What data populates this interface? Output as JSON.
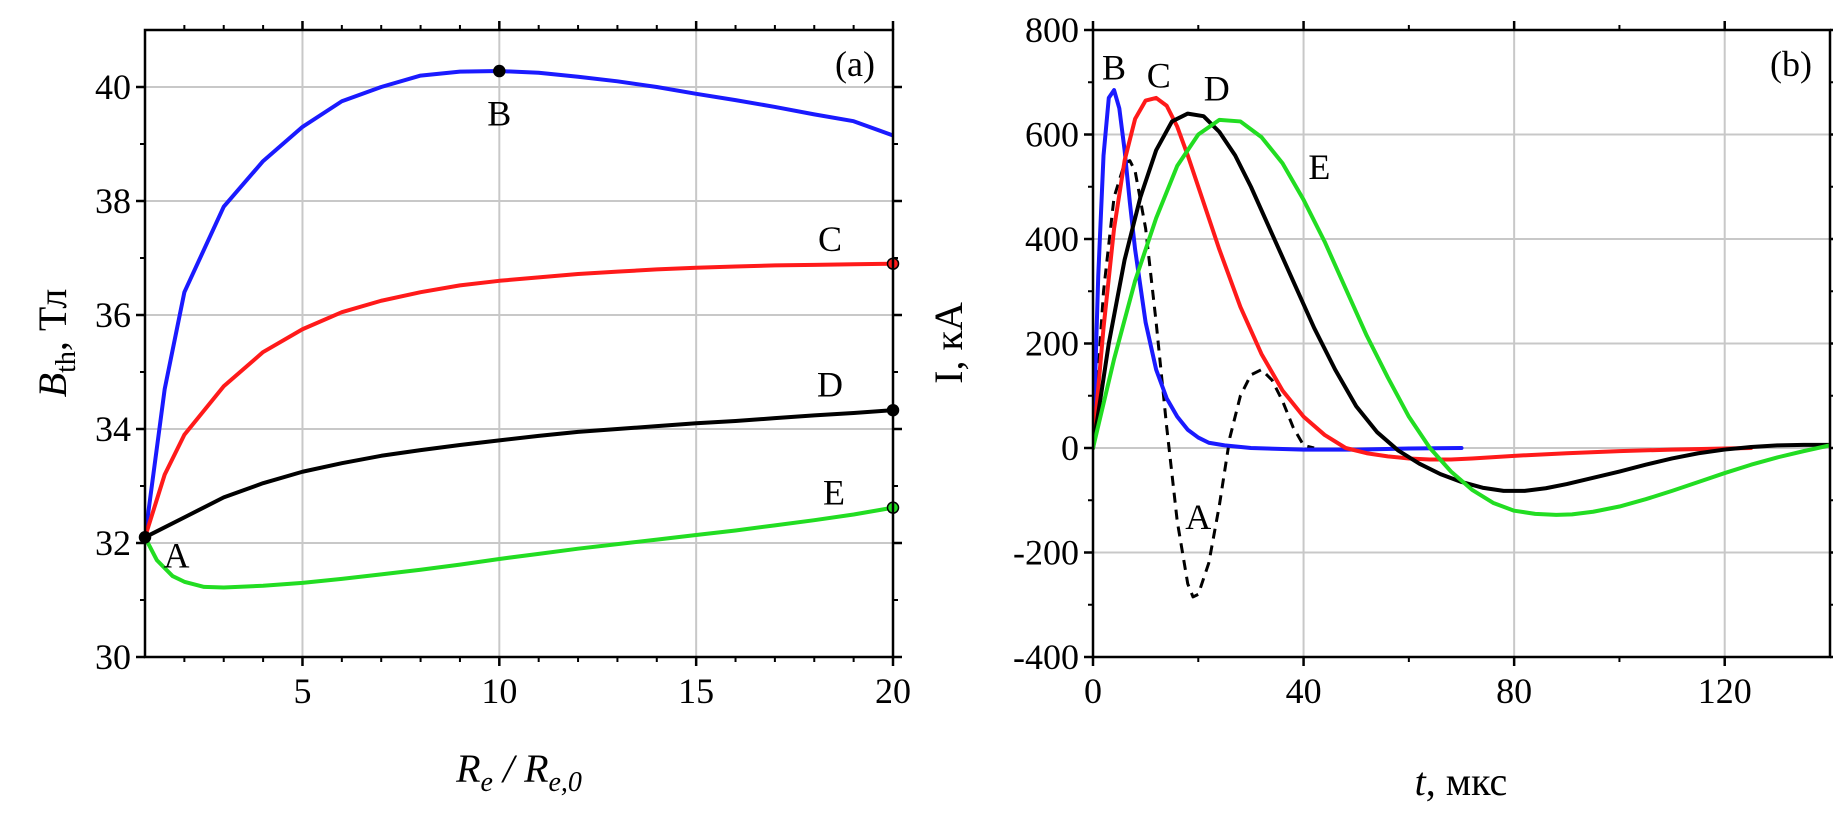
{
  "chart_data": [
    {
      "type": "line",
      "panel_label": "(a)",
      "ylabel": {
        "main": "B",
        "sub": "th",
        "rest": ", Тл"
      },
      "xlabel": {
        "part1": "R",
        "sub1": "e",
        "mid": " / ",
        "part2": "R",
        "sub2": "e,0"
      },
      "xlim": [
        1,
        20
      ],
      "ylim": [
        30,
        41
      ],
      "xticks": [
        5,
        10,
        15,
        20
      ],
      "xtick_labels": [
        "5",
        "10",
        "15",
        "20"
      ],
      "yticks": [
        30,
        32,
        34,
        36,
        38,
        40
      ],
      "ytick_labels": [
        "30",
        "32",
        "34",
        "36",
        "38",
        "40"
      ],
      "grid": true,
      "series": [
        {
          "name": "B",
          "color": "#1a1aff",
          "dash": false,
          "x": [
            1,
            1.5,
            2,
            3,
            4,
            5,
            6,
            7,
            8,
            9,
            10,
            11,
            12,
            13,
            14,
            15,
            16,
            17,
            18,
            19,
            20
          ],
          "y": [
            32.1,
            34.7,
            36.4,
            37.9,
            38.7,
            39.3,
            39.75,
            40.0,
            40.2,
            40.27,
            40.28,
            40.25,
            40.18,
            40.1,
            40.0,
            39.88,
            39.77,
            39.65,
            39.52,
            39.4,
            39.15
          ]
        },
        {
          "name": "C",
          "color": "#ff1a1a",
          "dash": false,
          "x": [
            1,
            1.5,
            2,
            3,
            4,
            5,
            6,
            7,
            8,
            9,
            10,
            11,
            12,
            13,
            14,
            15,
            16,
            17,
            18,
            19,
            20
          ],
          "y": [
            32.1,
            33.2,
            33.9,
            34.75,
            35.35,
            35.75,
            36.05,
            36.25,
            36.4,
            36.52,
            36.6,
            36.66,
            36.72,
            36.76,
            36.8,
            36.83,
            36.85,
            36.87,
            36.88,
            36.89,
            36.9
          ]
        },
        {
          "name": "D",
          "color": "#000000",
          "dash": false,
          "x": [
            1,
            2,
            3,
            4,
            5,
            6,
            7,
            8,
            9,
            10,
            11,
            12,
            13,
            14,
            15,
            16,
            17,
            18,
            19,
            20
          ],
          "y": [
            32.1,
            32.45,
            32.8,
            33.05,
            33.25,
            33.4,
            33.53,
            33.63,
            33.72,
            33.8,
            33.88,
            33.95,
            34.0,
            34.05,
            34.1,
            34.14,
            34.19,
            34.24,
            34.28,
            34.33
          ]
        },
        {
          "name": "E",
          "color": "#22dd22",
          "dash": false,
          "x": [
            1,
            1.3,
            1.7,
            2,
            2.5,
            3,
            4,
            5,
            6,
            7,
            8,
            9,
            10,
            11,
            12,
            13,
            14,
            15,
            16,
            17,
            18,
            19,
            20
          ],
          "y": [
            32.1,
            31.7,
            31.42,
            31.32,
            31.23,
            31.22,
            31.25,
            31.3,
            31.37,
            31.45,
            31.53,
            31.62,
            31.72,
            31.81,
            31.9,
            31.98,
            32.06,
            32.14,
            32.22,
            32.31,
            32.4,
            32.5,
            32.62
          ]
        }
      ],
      "points": [
        {
          "name": "A",
          "x": 1,
          "y": 32.1,
          "color": "#000000"
        },
        {
          "name": "B",
          "x": 10,
          "y": 40.28,
          "color": "#000000"
        },
        {
          "name": "C",
          "x": 20,
          "y": 36.9,
          "color": "#ff1a1a"
        },
        {
          "name": "D",
          "x": 20,
          "y": 34.33,
          "color": "#000000"
        },
        {
          "name": "E",
          "x": 20,
          "y": 32.62,
          "color": "#22dd22"
        }
      ],
      "annotations": [
        {
          "text": "A",
          "x": 1.8,
          "y": 31.8
        },
        {
          "text": "B",
          "x": 10,
          "y": 39.55
        },
        {
          "text": "C",
          "x": 18.4,
          "y": 37.35
        },
        {
          "text": "D",
          "x": 18.4,
          "y": 34.8
        },
        {
          "text": "E",
          "x": 18.5,
          "y": 32.9
        }
      ]
    },
    {
      "type": "line",
      "panel_label": "(b)",
      "ylabel": {
        "main": "I, кА"
      },
      "xlabel": {
        "part1": "t",
        "rest": ", мкс"
      },
      "xlim": [
        0,
        140
      ],
      "ylim": [
        -400,
        800
      ],
      "xticks": [
        0,
        40,
        80,
        120
      ],
      "xtick_labels": [
        "0",
        "40",
        "80",
        "120"
      ],
      "yticks": [
        -400,
        -200,
        0,
        200,
        400,
        600,
        800
      ],
      "ytick_labels": [
        "-400",
        "-200",
        "0",
        "200",
        "400",
        "600",
        "800"
      ],
      "grid": true,
      "series": [
        {
          "name": "A",
          "color": "#000000",
          "dash": true,
          "x": [
            0,
            2,
            4,
            6,
            7,
            8,
            10,
            12,
            14,
            16,
            18,
            19,
            20,
            22,
            24,
            26,
            28,
            30,
            32,
            34,
            36,
            38,
            40,
            42
          ],
          "y": [
            0,
            300,
            480,
            545,
            550,
            530,
            420,
            240,
            40,
            -140,
            -260,
            -285,
            -280,
            -220,
            -110,
            20,
            100,
            140,
            150,
            130,
            90,
            40,
            5,
            0
          ]
        },
        {
          "name": "B",
          "color": "#1a1aff",
          "dash": false,
          "x": [
            0,
            1,
            2,
            3,
            4,
            5,
            6,
            7,
            8,
            10,
            12,
            14,
            16,
            18,
            20,
            22,
            25,
            30,
            40,
            50,
            60,
            70
          ],
          "y": [
            0,
            330,
            560,
            670,
            685,
            650,
            570,
            470,
            380,
            240,
            150,
            95,
            60,
            35,
            20,
            10,
            5,
            0,
            -3,
            -3,
            -1,
            0
          ]
        },
        {
          "name": "C",
          "color": "#ff1a1a",
          "dash": false,
          "x": [
            0,
            2,
            4,
            6,
            8,
            10,
            12,
            14,
            16,
            18,
            20,
            24,
            28,
            32,
            36,
            40,
            44,
            48,
            52,
            56,
            60,
            64,
            68,
            72,
            80,
            90,
            100,
            110,
            120,
            125
          ],
          "y": [
            0,
            230,
            420,
            550,
            630,
            665,
            670,
            655,
            615,
            560,
            500,
            380,
            270,
            180,
            110,
            60,
            25,
            0,
            -10,
            -16,
            -20,
            -22,
            -22,
            -20,
            -15,
            -10,
            -6,
            -3,
            -1,
            0
          ]
        },
        {
          "name": "D",
          "color": "#000000",
          "dash": false,
          "x": [
            0,
            3,
            6,
            9,
            12,
            15,
            18,
            21,
            24,
            27,
            30,
            34,
            38,
            42,
            46,
            50,
            54,
            58,
            62,
            66,
            70,
            74,
            78,
            82,
            86,
            90,
            95,
            100,
            105,
            110,
            115,
            120,
            125,
            130,
            135,
            140
          ],
          "y": [
            0,
            200,
            360,
            480,
            570,
            625,
            640,
            635,
            605,
            560,
            500,
            410,
            320,
            230,
            150,
            80,
            30,
            -5,
            -30,
            -50,
            -65,
            -76,
            -82,
            -82,
            -77,
            -69,
            -57,
            -45,
            -32,
            -20,
            -10,
            -3,
            2,
            5,
            6,
            6
          ]
        },
        {
          "name": "E",
          "color": "#22dd22",
          "dash": false,
          "x": [
            0,
            4,
            8,
            12,
            16,
            20,
            24,
            28,
            32,
            36,
            40,
            44,
            48,
            52,
            56,
            60,
            64,
            68,
            72,
            76,
            80,
            84,
            88,
            91,
            95,
            100,
            105,
            110,
            115,
            120,
            125,
            130,
            135,
            140
          ],
          "y": [
            0,
            170,
            320,
            440,
            540,
            600,
            628,
            625,
            595,
            545,
            475,
            395,
            305,
            215,
            135,
            60,
            0,
            -45,
            -80,
            -105,
            -120,
            -126,
            -128,
            -127,
            -122,
            -112,
            -98,
            -82,
            -65,
            -48,
            -32,
            -18,
            -6,
            5
          ]
        }
      ],
      "annotations": [
        {
          "text": "B",
          "x": 4,
          "y": 730
        },
        {
          "text": "C",
          "x": 12.5,
          "y": 715
        },
        {
          "text": "D",
          "x": 23.5,
          "y": 690
        },
        {
          "text": "E",
          "x": 43,
          "y": 540
        },
        {
          "text": "A",
          "x": 20,
          "y": -130
        }
      ]
    }
  ]
}
